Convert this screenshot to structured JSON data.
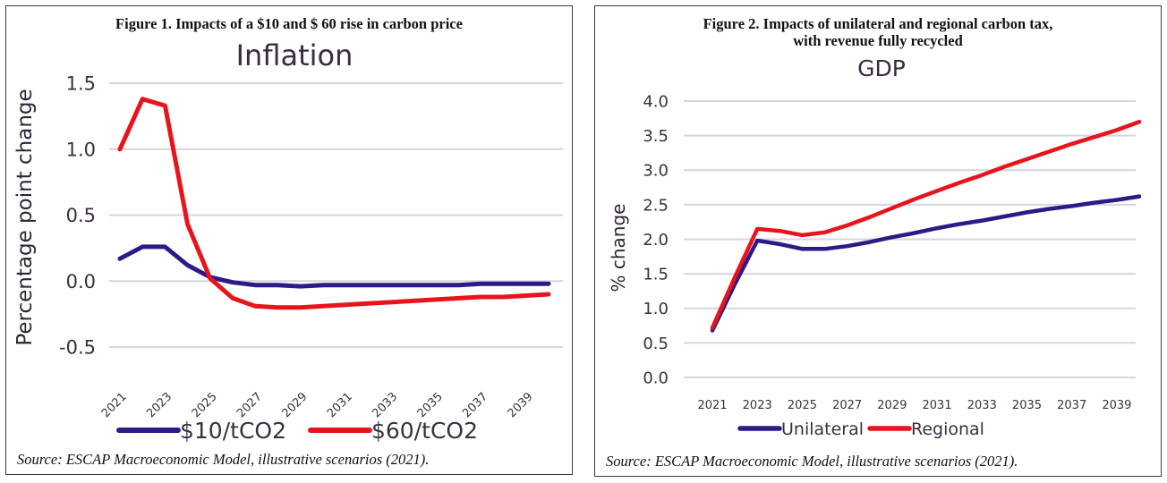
{
  "figures": [
    {
      "figure_title": "Figure 1. Impacts of a $10 and $ 60 rise in carbon price",
      "source": "Source: ESCAP Macroeconomic Model, illustrative scenarios (2021)."
    },
    {
      "figure_title_line1": "Figure 2. Impacts of unilateral and regional carbon tax,",
      "figure_title_line2": "with revenue fully recycled",
      "source": "Source: ESCAP Macroeconomic Model, illustrative scenarios (2021)."
    }
  ],
  "chart_data": [
    {
      "type": "line",
      "title": "Inflation",
      "xlabel": "",
      "ylabel": "Percentage point change",
      "x": [
        2021,
        2022,
        2023,
        2024,
        2025,
        2026,
        2027,
        2028,
        2029,
        2030,
        2031,
        2032,
        2033,
        2034,
        2035,
        2036,
        2037,
        2038,
        2039,
        2040
      ],
      "x_tick_labels": [
        "2021",
        "2023",
        "2025",
        "2027",
        "2029",
        "2031",
        "2033",
        "2035",
        "2037",
        "2039"
      ],
      "x_tick_rotation": "diagonal",
      "y_ticks": [
        1.5,
        1.0,
        0.5,
        0.0,
        -0.5
      ],
      "y_tick_labels": [
        "1.5",
        "1.0",
        "0.5",
        "0.0",
        "-0.5"
      ],
      "ylim": [
        -0.5,
        1.5
      ],
      "grid": true,
      "legend_position": "bottom",
      "series": [
        {
          "name": "$10/tCO2",
          "color": "#2e1a87",
          "values": [
            0.17,
            0.26,
            0.26,
            0.12,
            0.03,
            -0.01,
            -0.03,
            -0.03,
            -0.04,
            -0.03,
            -0.03,
            -0.03,
            -0.03,
            -0.03,
            -0.03,
            -0.03,
            -0.02,
            -0.02,
            -0.02,
            -0.02
          ]
        },
        {
          "name": "$60/tCO2",
          "color": "#e8141c",
          "values": [
            1.0,
            1.38,
            1.33,
            0.43,
            0.02,
            -0.13,
            -0.19,
            -0.2,
            -0.2,
            -0.19,
            -0.18,
            -0.17,
            -0.16,
            -0.15,
            -0.14,
            -0.13,
            -0.12,
            -0.12,
            -0.11,
            -0.1
          ]
        }
      ]
    },
    {
      "type": "line",
      "title": "GDP",
      "xlabel": "",
      "ylabel": "% change",
      "x": [
        2021,
        2022,
        2023,
        2024,
        2025,
        2026,
        2027,
        2028,
        2029,
        2030,
        2031,
        2032,
        2033,
        2034,
        2035,
        2036,
        2037,
        2038,
        2039,
        2040
      ],
      "x_tick_labels": [
        "2021",
        "2023",
        "2025",
        "2027",
        "2029",
        "2031",
        "2033",
        "2035",
        "2037",
        "2039"
      ],
      "x_tick_rotation": "horizontal",
      "y_ticks": [
        4.0,
        3.5,
        3.0,
        2.5,
        2.0,
        1.5,
        1.0,
        0.5,
        0.0
      ],
      "y_tick_labels": [
        "4.0",
        "3.5",
        "3.0",
        "2.5",
        "2.0",
        "1.5",
        "1.0",
        "0.5",
        "0.0"
      ],
      "ylim": [
        0.0,
        4.0
      ],
      "grid": true,
      "legend_position": "bottom",
      "series": [
        {
          "name": "Unilateral",
          "color": "#2e1a87",
          "values": [
            0.68,
            1.35,
            1.98,
            1.93,
            1.86,
            1.86,
            1.9,
            1.96,
            2.03,
            2.09,
            2.16,
            2.22,
            2.27,
            2.33,
            2.39,
            2.44,
            2.48,
            2.53,
            2.57,
            2.62
          ]
        },
        {
          "name": "Regional",
          "color": "#e8141c",
          "values": [
            0.72,
            1.45,
            2.15,
            2.12,
            2.06,
            2.1,
            2.2,
            2.32,
            2.45,
            2.58,
            2.7,
            2.82,
            2.93,
            3.05,
            3.16,
            3.27,
            3.38,
            3.48,
            3.58,
            3.7
          ]
        }
      ]
    }
  ]
}
